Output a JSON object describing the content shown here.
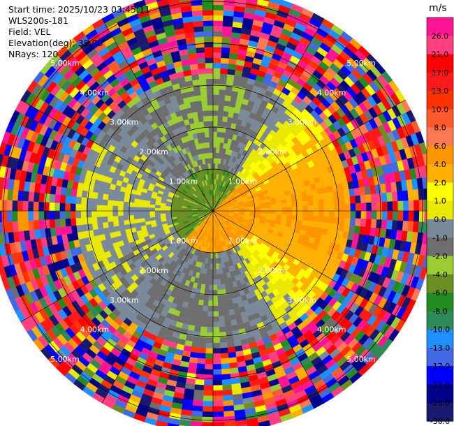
{
  "info": {
    "start_time": "Start time: 2025/10/23 03:45:11",
    "site": "WLS200s-181",
    "field": "Field: VEL",
    "elevation": "Elevation(deg): 35.00",
    "nrays": "NRays: 120"
  },
  "chart_data": {
    "type": "heatmap",
    "projection": "polar-ppi",
    "field": "VEL",
    "elevation_deg": 35.0,
    "n_rays": 120,
    "range_rings_km": [
      1.0,
      2.0,
      3.0,
      4.0,
      5.0
    ],
    "ring_labels": [
      "1.00km",
      "2.00km",
      "3.00km",
      "4.00km",
      "5.00km"
    ],
    "max_range_km": 5.3,
    "spokes_deg": [
      0,
      30,
      60,
      90,
      120,
      150,
      180,
      210,
      240,
      270,
      300,
      330
    ],
    "colorbar": {
      "unit": "m/s",
      "ticks": [
        "26.0",
        "21.0",
        "17.0",
        "13.0",
        "10.0",
        "8.0",
        "6.0",
        "4.0",
        "2.0",
        "1.0",
        "0.0",
        "-1.0",
        "-2.0",
        "-4.0",
        "-6.0",
        "-8.0",
        "-10.0",
        "-13.0",
        "-17.0",
        "-21.0",
        "-26.0",
        "-30.0"
      ],
      "bin_colors": [
        "#ff1493",
        "#ff3f7f",
        "#ff0000",
        "#ff1a1a",
        "#ff3300",
        "#ff5a2e",
        "#ff7a52",
        "#ff9600",
        "#ffb000",
        "#ffff00",
        "#e8e800",
        "#7a8a9a",
        "#6e6e6e",
        "#9acd32",
        "#6b8e23",
        "#228b22",
        "#2e8b57",
        "#1e90ff",
        "#4169e1",
        "#0000ff",
        "#00008b",
        "#191970"
      ]
    },
    "velocity_structure": {
      "near_field_km": [
        0.0,
        1.0
      ],
      "near_field_values_ms": {
        "northwest": -5.0,
        "southeast": 4.5
      },
      "mid_field_km": [
        1.0,
        3.0
      ],
      "mid_field_values_ms": {
        "north": -2.0,
        "west": 0.0,
        "east": 4.0,
        "south": -1.5
      },
      "far_field_km": [
        3.3,
        5.3
      ],
      "far_field": "noise"
    }
  }
}
